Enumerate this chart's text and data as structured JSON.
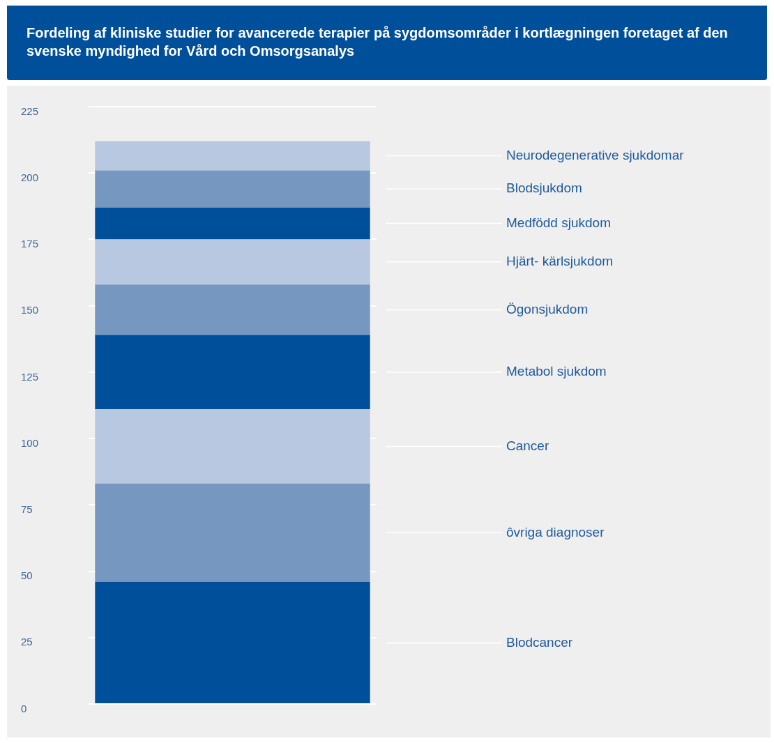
{
  "chart_data": {
    "type": "bar",
    "stacked": true,
    "title": "Fordeling af kliniske studier for avancerede terapier på sygdomsområder i kortlægningen foretaget af den svenske myndighed for Vård och Omsorgsanalys",
    "categories": [
      null
    ],
    "series": [
      {
        "name": "Blodcancer",
        "color": "#004f9b",
        "values": [
          46
        ]
      },
      {
        "name": "ôvriga diagnoser",
        "color": "#7597c0",
        "values": [
          37
        ]
      },
      {
        "name": "Cancer",
        "color": "#b8c8e0",
        "values": [
          28
        ]
      },
      {
        "name": "Metabol sjukdom",
        "color": "#004f9b",
        "values": [
          28
        ]
      },
      {
        "name": "Ögonsjukdom",
        "color": "#7597c0",
        "values": [
          19
        ]
      },
      {
        "name": "Hjärt- kärlsjukdom",
        "color": "#b8c8e0",
        "values": [
          17
        ]
      },
      {
        "name": "Medfödd sjukdom",
        "color": "#004f9b",
        "values": [
          12
        ]
      },
      {
        "name": "Blodsjukdom",
        "color": "#7597c0",
        "values": [
          14
        ]
      },
      {
        "name": "Neurodegenerative sjukdomar",
        "color": "#b8c8e0",
        "values": [
          11
        ]
      }
    ],
    "ylim": [
      0,
      225
    ],
    "yticks": [
      0,
      25,
      50,
      75,
      100,
      125,
      150,
      175,
      200,
      225
    ],
    "grid": "y"
  }
}
